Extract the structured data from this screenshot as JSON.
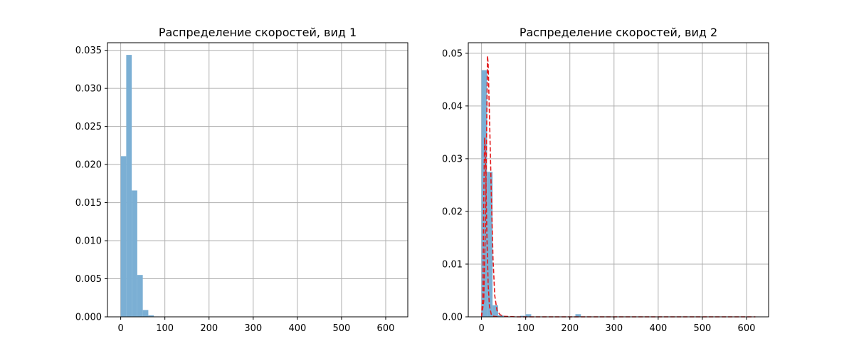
{
  "chart_data": [
    {
      "type": "bar",
      "title": "Распределение скоростей, вид 1",
      "xlabel": "",
      "ylabel": "",
      "xlim": [
        -30,
        650
      ],
      "ylim": [
        0,
        0.036
      ],
      "xticks": [
        0,
        100,
        200,
        300,
        400,
        500,
        600
      ],
      "yticks": [
        0.0,
        0.005,
        0.01,
        0.015,
        0.02,
        0.025,
        0.03,
        0.035
      ],
      "ytick_labels": [
        "0.000",
        "0.005",
        "0.010",
        "0.015",
        "0.020",
        "0.025",
        "0.030",
        "0.035"
      ],
      "grid": true,
      "bar_color": "#7bafd4",
      "bins": [
        {
          "x0": 0,
          "x1": 12.5,
          "y": 0.0211
        },
        {
          "x0": 12.5,
          "x1": 25,
          "y": 0.0344
        },
        {
          "x0": 25,
          "x1": 37.5,
          "y": 0.0166
        },
        {
          "x0": 37.5,
          "x1": 50,
          "y": 0.0055
        },
        {
          "x0": 50,
          "x1": 62.5,
          "y": 0.0009
        },
        {
          "x0": 62.5,
          "x1": 75,
          "y": 0.0002
        },
        {
          "x0": 75,
          "x1": 87.5,
          "y": 5e-05
        }
      ]
    },
    {
      "type": "bar",
      "title": "Распределение скоростей, вид 2",
      "xlabel": "",
      "ylabel": "",
      "xlim": [
        -30,
        650
      ],
      "ylim": [
        0,
        0.052
      ],
      "xticks": [
        0,
        100,
        200,
        300,
        400,
        500,
        600
      ],
      "yticks": [
        0.0,
        0.01,
        0.02,
        0.03,
        0.04,
        0.05
      ],
      "ytick_labels": [
        "0.00",
        "0.01",
        "0.02",
        "0.03",
        "0.04",
        "0.05"
      ],
      "grid": true,
      "bar_color": "#7bafd4",
      "bins": [
        {
          "x0": 0,
          "x1": 12.5,
          "y": 0.0468
        },
        {
          "x0": 12.5,
          "x1": 25,
          "y": 0.0275
        },
        {
          "x0": 25,
          "x1": 37.5,
          "y": 0.0022
        },
        {
          "x0": 37.5,
          "x1": 50,
          "y": 0.0003
        },
        {
          "x0": 87.5,
          "x1": 100,
          "y": 0.0002
        },
        {
          "x0": 100,
          "x1": 112.5,
          "y": 0.0005
        },
        {
          "x0": 212.5,
          "x1": 225,
          "y": 0.0005
        }
      ],
      "fit_curves": [
        {
          "color": "#e31a1c",
          "style": "dashed",
          "points": [
            [
              0,
              0.0
            ],
            [
              3,
              0.004
            ],
            [
              5,
              0.022
            ],
            [
              7,
              0.034
            ],
            [
              8.5,
              0.031
            ],
            [
              10,
              0.026
            ],
            [
              12,
              0.016
            ],
            [
              15,
              0.006
            ],
            [
              18,
              0.002
            ],
            [
              22,
              0.0005
            ],
            [
              28,
              0.0001
            ],
            [
              40,
              0.0
            ]
          ]
        },
        {
          "color": "#e31a1c",
          "style": "dashed",
          "points": [
            [
              0,
              0.0
            ],
            [
              5,
              0.003
            ],
            [
              9,
              0.018
            ],
            [
              12,
              0.038
            ],
            [
              13.5,
              0.0495
            ],
            [
              15,
              0.048
            ],
            [
              18,
              0.038
            ],
            [
              22,
              0.024
            ],
            [
              26,
              0.011
            ],
            [
              30,
              0.004
            ],
            [
              35,
              0.0012
            ],
            [
              42,
              0.0004
            ],
            [
              50,
              0.0001
            ],
            [
              80,
              0.0
            ],
            [
              620,
              0.0
            ]
          ]
        }
      ]
    }
  ]
}
